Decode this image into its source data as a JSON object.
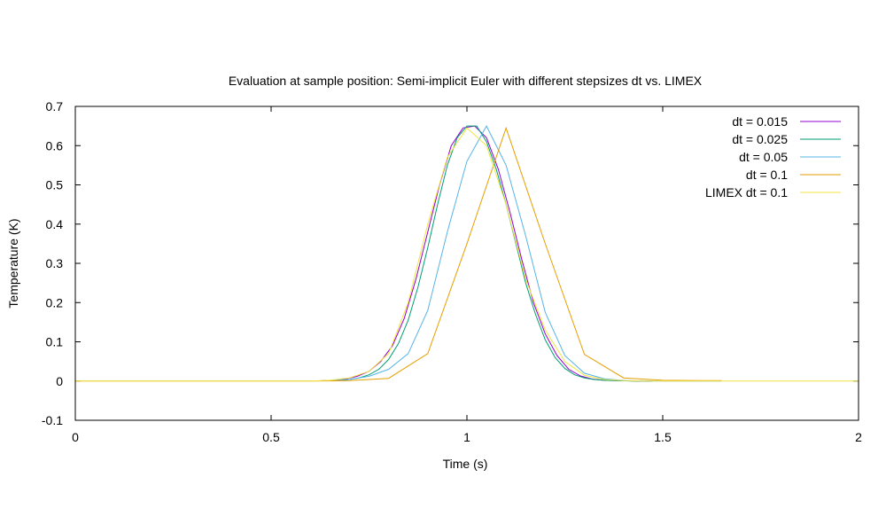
{
  "chart_data": {
    "type": "line",
    "title": "Evaluation at sample position: Semi-implicit Euler with different stepsizes dt vs. LIMEX",
    "xlabel": "Time (s)",
    "ylabel": "Temperature (K)",
    "xlim": [
      0,
      2
    ],
    "ylim": [
      -0.1,
      0.7
    ],
    "xticks": [
      0,
      0.5,
      1,
      1.5,
      2
    ],
    "xtick_labels": [
      "0",
      "0.5",
      "1",
      "1.5",
      "2"
    ],
    "yticks": [
      -0.1,
      0,
      0.1,
      0.2,
      0.3,
      0.4,
      0.5,
      0.6,
      0.7
    ],
    "ytick_labels": [
      "-0.1",
      "0",
      "0.1",
      "0.2",
      "0.3",
      "0.4",
      "0.5",
      "0.6",
      "0.7"
    ],
    "grid": false,
    "legend_position": "top-right",
    "series": [
      {
        "name": "dt = 0.015",
        "color": "#9400d3",
        "x": [
          0.63,
          0.66,
          0.69,
          0.72,
          0.75,
          0.78,
          0.81,
          0.84,
          0.87,
          0.9,
          0.93,
          0.96,
          0.99,
          1.02,
          1.05,
          1.08,
          1.11,
          1.14,
          1.17,
          1.2,
          1.23,
          1.26,
          1.29,
          1.32,
          1.35,
          1.38,
          1.41,
          1.44,
          1.47
        ],
        "y": [
          0.001,
          0.002,
          0.005,
          0.012,
          0.025,
          0.05,
          0.09,
          0.16,
          0.26,
          0.38,
          0.5,
          0.6,
          0.645,
          0.65,
          0.62,
          0.54,
          0.43,
          0.31,
          0.2,
          0.12,
          0.065,
          0.03,
          0.013,
          0.005,
          0.002,
          0.001,
          0.0005,
          0.0002,
          0.0001
        ]
      },
      {
        "name": "dt = 0.025",
        "color": "#009e73",
        "x": [
          0.625,
          0.65,
          0.675,
          0.7,
          0.725,
          0.75,
          0.775,
          0.8,
          0.825,
          0.85,
          0.875,
          0.9,
          0.925,
          0.95,
          0.975,
          1.0,
          1.025,
          1.05,
          1.075,
          1.1,
          1.125,
          1.15,
          1.175,
          1.2,
          1.225,
          1.25,
          1.275,
          1.3,
          1.325,
          1.35,
          1.375,
          1.4,
          1.425,
          1.45,
          1.475
        ],
        "y": [
          0.0005,
          0.001,
          0.002,
          0.004,
          0.008,
          0.016,
          0.03,
          0.055,
          0.095,
          0.155,
          0.24,
          0.34,
          0.45,
          0.55,
          0.62,
          0.65,
          0.65,
          0.61,
          0.54,
          0.45,
          0.35,
          0.25,
          0.17,
          0.105,
          0.06,
          0.032,
          0.016,
          0.008,
          0.004,
          0.002,
          0.001,
          0.0005,
          0.0002,
          0.0001,
          0.0001
        ]
      },
      {
        "name": "dt = 0.05",
        "color": "#56b4e9",
        "x": [
          0.65,
          0.7,
          0.75,
          0.8,
          0.85,
          0.9,
          0.95,
          1.0,
          1.05,
          1.1,
          1.15,
          1.2,
          1.25,
          1.3,
          1.35,
          1.4,
          1.45,
          1.5,
          1.55,
          1.6,
          1.65
        ],
        "y": [
          0.001,
          0.004,
          0.012,
          0.03,
          0.07,
          0.18,
          0.38,
          0.56,
          0.65,
          0.55,
          0.37,
          0.175,
          0.065,
          0.02,
          0.006,
          0.0015,
          0.0004,
          0.0001,
          0.0,
          0.0,
          0.0
        ]
      },
      {
        "name": "dt = 0.1",
        "color": "#e69f00",
        "x": [
          0.0,
          0.1,
          0.2,
          0.3,
          0.4,
          0.5,
          0.6,
          0.7,
          0.8,
          0.9,
          1.0,
          1.1,
          1.2,
          1.3,
          1.4,
          1.5,
          1.6,
          1.65
        ],
        "y": [
          0.0,
          0.0,
          0.0,
          0.0,
          0.0,
          0.0,
          0.0,
          0.001,
          0.007,
          0.07,
          0.35,
          0.645,
          0.35,
          0.068,
          0.008,
          0.002,
          0.001,
          0.001
        ]
      },
      {
        "name": "LIMEX dt = 0.1",
        "color": "#f0e442",
        "x": [
          0.0,
          0.1,
          0.2,
          0.3,
          0.4,
          0.5,
          0.6,
          0.65,
          0.7,
          0.75,
          0.8,
          0.85,
          0.9,
          0.95,
          1.0,
          1.05,
          1.1,
          1.15,
          1.2,
          1.25,
          1.3,
          1.35,
          1.4,
          1.45,
          1.5,
          1.6,
          1.7,
          1.8,
          1.9,
          2.0
        ],
        "y": [
          0.0,
          0.0,
          0.0,
          0.0,
          0.0,
          0.0,
          0.0,
          0.002,
          0.008,
          0.025,
          0.07,
          0.2,
          0.4,
          0.57,
          0.645,
          0.6,
          0.45,
          0.26,
          0.13,
          0.05,
          0.015,
          0.004,
          0.001,
          0.0,
          0.0,
          0.0,
          0.0,
          0.0,
          0.0,
          0.0
        ]
      }
    ]
  }
}
